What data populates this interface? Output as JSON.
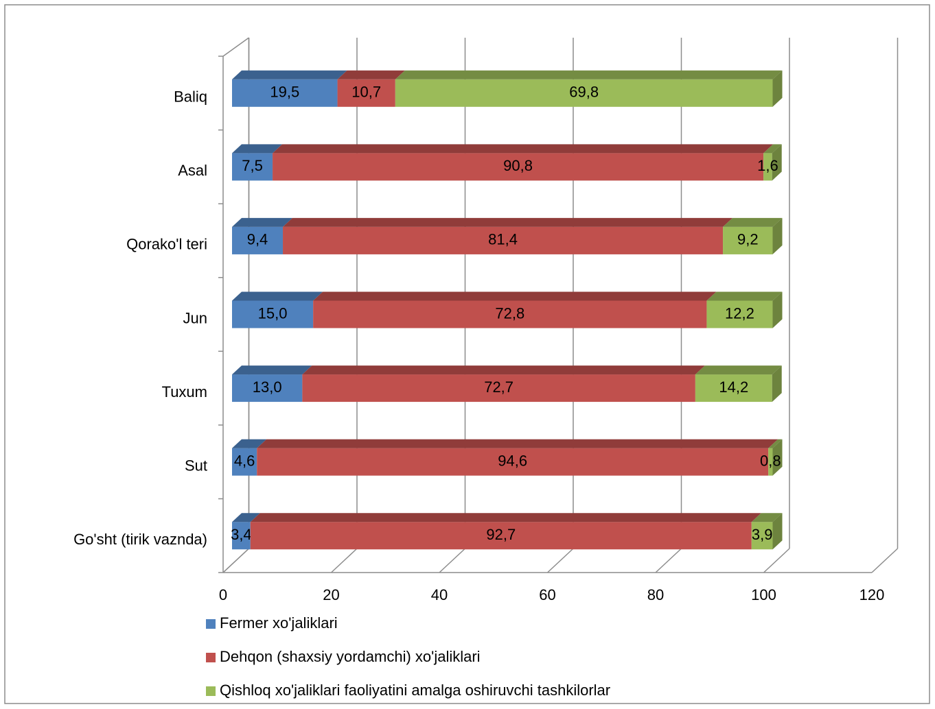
{
  "chart_data": {
    "type": "bar3d_stacked_horizontal",
    "categories": [
      "Baliq",
      "Asal",
      "Qorako'l teri",
      "Jun",
      "Tuxum",
      "Sut",
      "Go'sht (tirik vaznda)"
    ],
    "series": [
      {
        "name": "Fermer xo'jaliklari",
        "color": "#4f81bd",
        "values": [
          19.5,
          7.5,
          9.4,
          15.0,
          13.0,
          4.6,
          3.4
        ],
        "value_labels": [
          "19,5",
          "7,5",
          "9,4",
          "15,0",
          "13,0",
          "4,6",
          "3,4"
        ]
      },
      {
        "name": "Dehqon (shaxsiy yordamchi) xo'jaliklari",
        "color": "#c0504d",
        "values": [
          10.7,
          90.8,
          81.4,
          72.8,
          72.7,
          94.6,
          92.7
        ],
        "value_labels": [
          "10,7",
          "90,8",
          "81,4",
          "72,8",
          "72,7",
          "94,6",
          "92,7"
        ]
      },
      {
        "name": "Qishloq xo'jaliklari faoliyatini amalga oshiruvchi tashkilorlar",
        "color": "#9bbb59",
        "values": [
          69.8,
          1.6,
          9.2,
          12.2,
          14.2,
          0.8,
          3.9
        ],
        "value_labels": [
          "69,8",
          "1,6",
          "9,2",
          "12,2",
          "14,2",
          "0,8",
          "3,9"
        ]
      }
    ],
    "xlim": [
      0,
      120
    ],
    "xticks": [
      0,
      20,
      40,
      60,
      80,
      100,
      120
    ],
    "grid": true
  }
}
